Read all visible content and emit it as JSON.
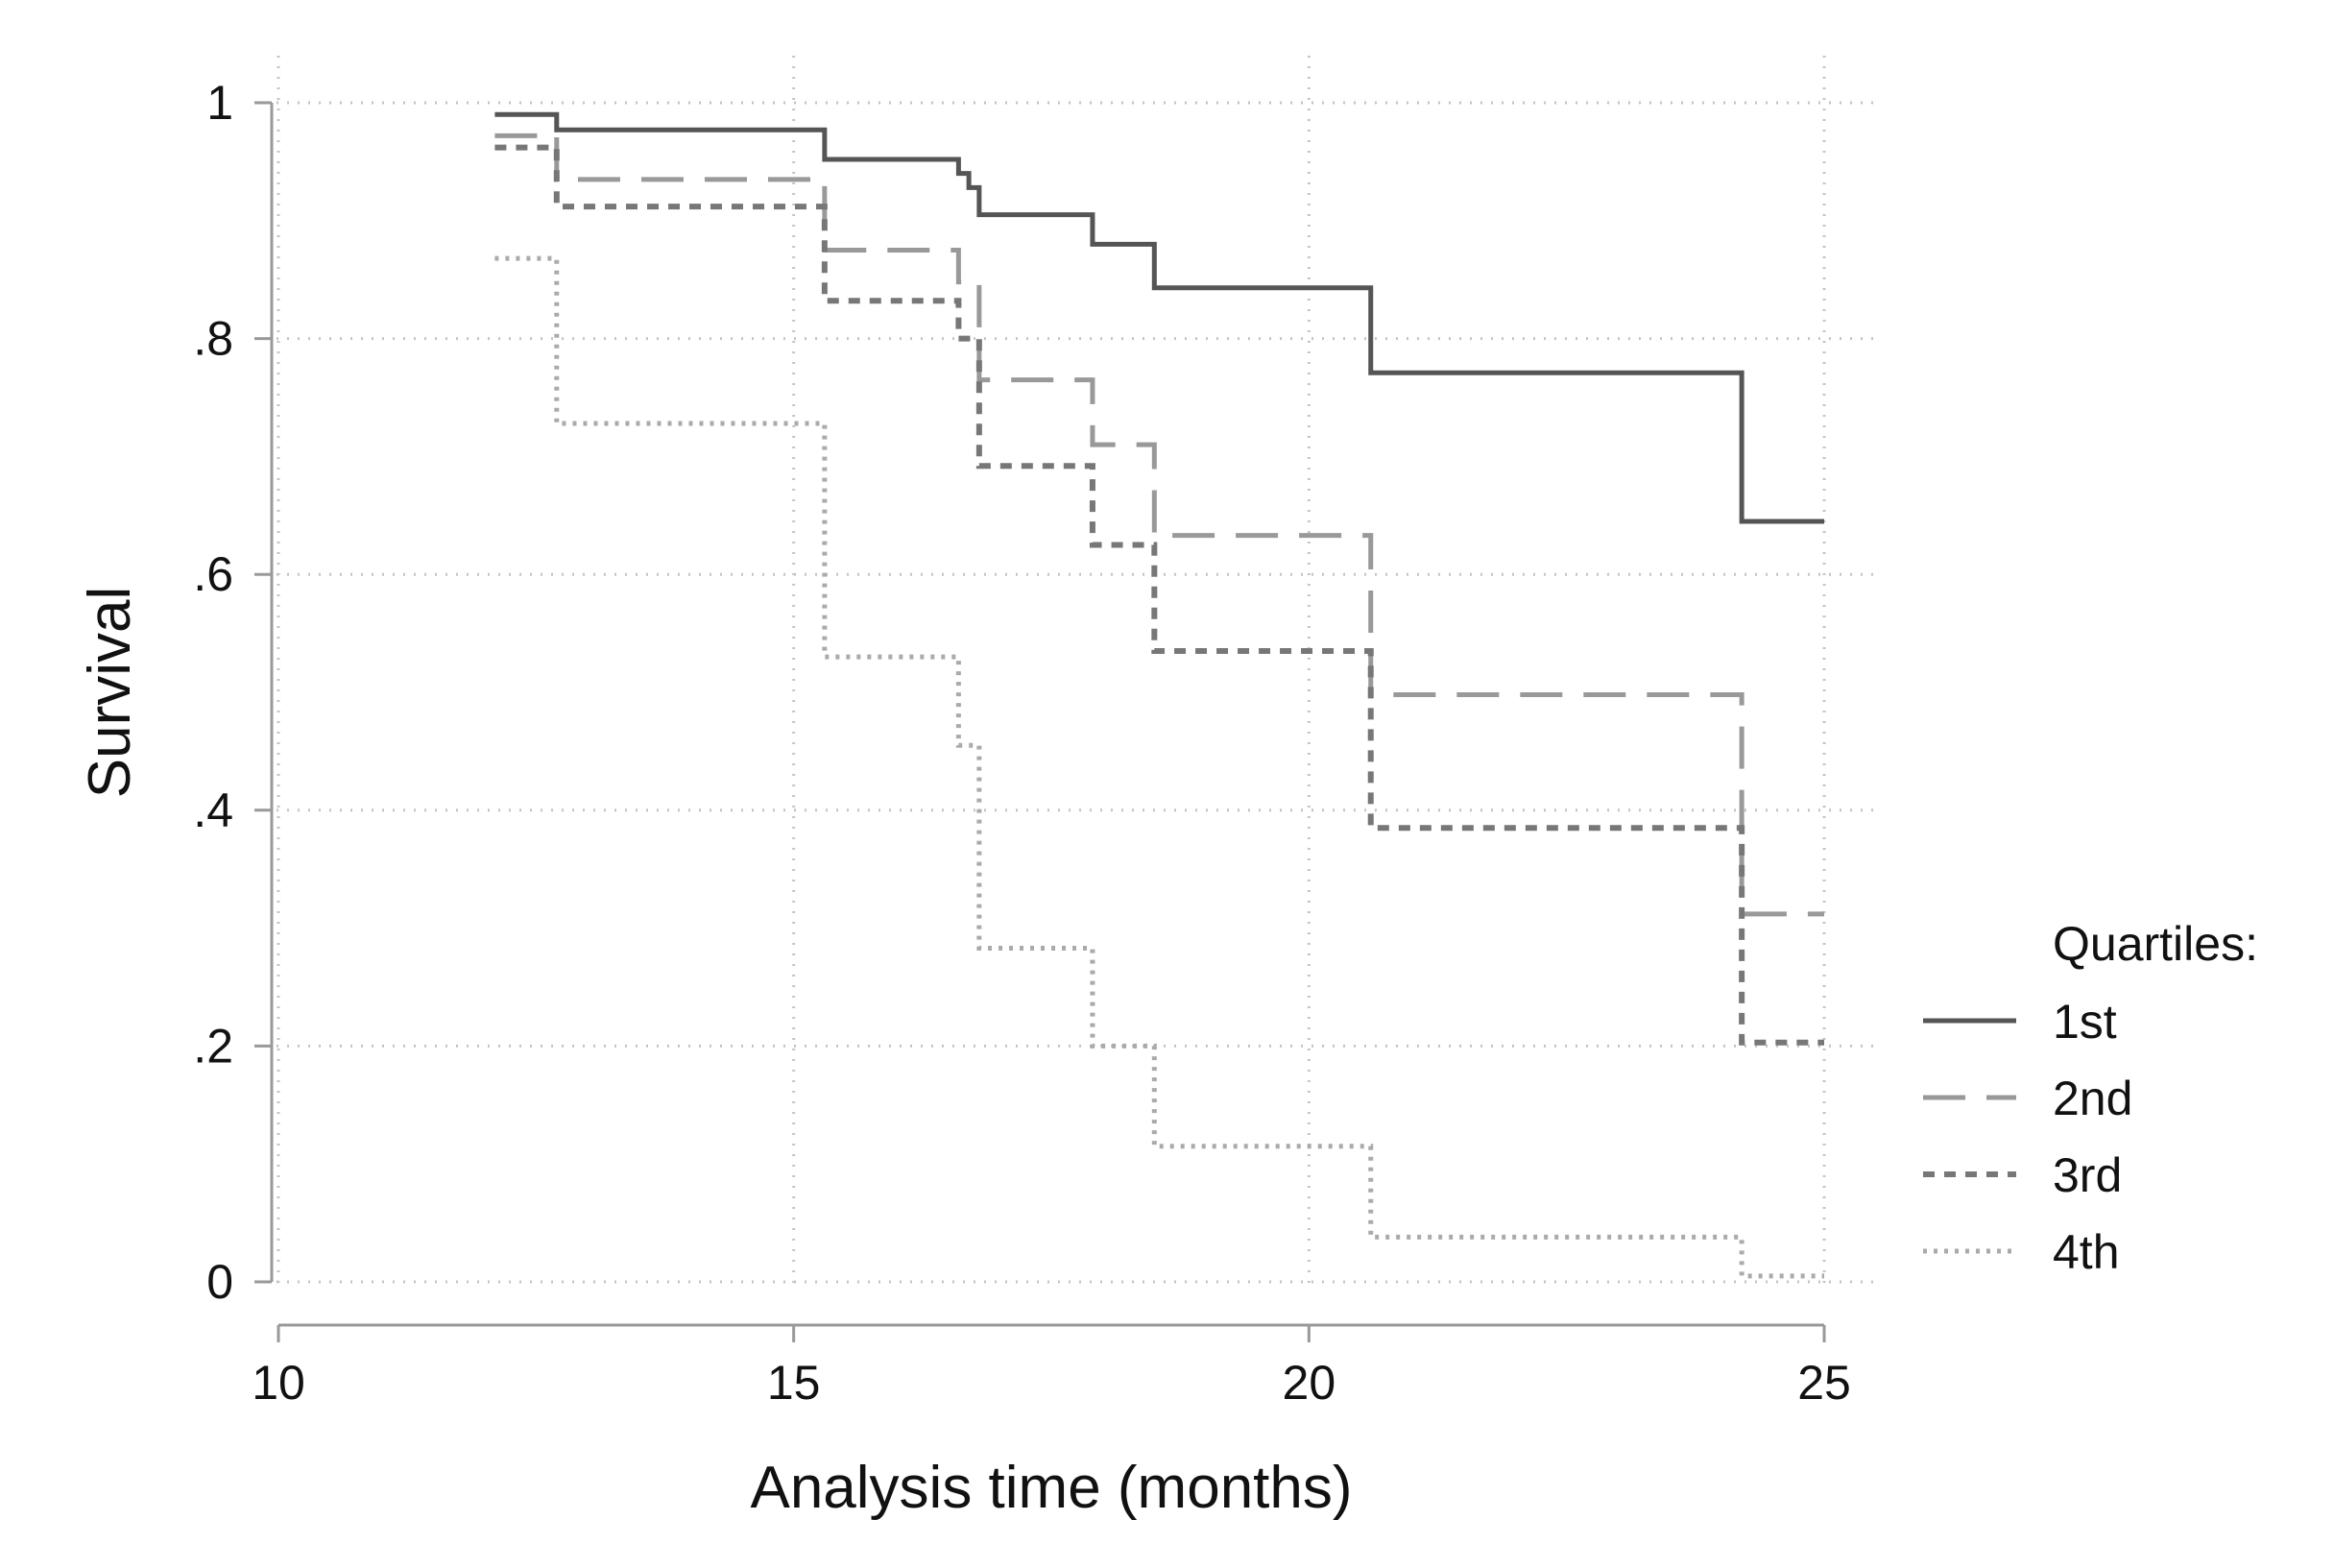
{
  "chart_data": {
    "type": "line",
    "step": true,
    "title": "",
    "xlabel": "Analysis time (months)",
    "ylabel": "Survival",
    "xlim": [
      10,
      25
    ],
    "ylim": [
      0,
      1
    ],
    "xticks": [
      10,
      15,
      20,
      25
    ],
    "xtick_labels": [
      "10",
      "15",
      "20",
      "25"
    ],
    "yticks": [
      0,
      0.2,
      0.4,
      0.6,
      0.8,
      1
    ],
    "ytick_labels": [
      "0",
      ".2",
      ".4",
      ".6",
      ".8",
      "1"
    ],
    "grid": true,
    "legend": {
      "title": "Quartiles:",
      "position": "right"
    },
    "series": [
      {
        "name": "1st",
        "color": "#555555",
        "dash": "solid",
        "points": [
          [
            12.1,
            0.99
          ],
          [
            12.7,
            0.977
          ],
          [
            15.3,
            0.952
          ],
          [
            16.6,
            0.94
          ],
          [
            16.7,
            0.928
          ],
          [
            16.8,
            0.905
          ],
          [
            17.9,
            0.88
          ],
          [
            18.5,
            0.843
          ],
          [
            20.6,
            0.771
          ],
          [
            24.2,
            0.645
          ],
          [
            25.0,
            0.645
          ]
        ]
      },
      {
        "name": "2nd",
        "color": "#999999",
        "dash": "long",
        "points": [
          [
            12.1,
            0.972
          ],
          [
            12.7,
            0.935
          ],
          [
            15.3,
            0.875
          ],
          [
            16.6,
            0.848
          ],
          [
            16.8,
            0.765
          ],
          [
            17.9,
            0.71
          ],
          [
            18.5,
            0.633
          ],
          [
            20.6,
            0.498
          ],
          [
            24.2,
            0.312
          ],
          [
            25.0,
            0.312
          ]
        ]
      },
      {
        "name": "3rd",
        "color": "#777777",
        "dash": "short",
        "points": [
          [
            12.1,
            0.962
          ],
          [
            12.7,
            0.912
          ],
          [
            15.3,
            0.832
          ],
          [
            16.6,
            0.8
          ],
          [
            16.8,
            0.692
          ],
          [
            17.9,
            0.625
          ],
          [
            18.5,
            0.535
          ],
          [
            20.6,
            0.385
          ],
          [
            24.2,
            0.203
          ],
          [
            25.0,
            0.203
          ]
        ]
      },
      {
        "name": "4th",
        "color": "#aaaaaa",
        "dash": "dot",
        "points": [
          [
            12.1,
            0.868
          ],
          [
            12.7,
            0.728
          ],
          [
            15.3,
            0.53
          ],
          [
            16.6,
            0.455
          ],
          [
            16.8,
            0.283
          ],
          [
            17.9,
            0.2
          ],
          [
            18.5,
            0.115
          ],
          [
            20.6,
            0.038
          ],
          [
            24.2,
            0.005
          ],
          [
            25.0,
            0.005
          ]
        ]
      }
    ]
  }
}
